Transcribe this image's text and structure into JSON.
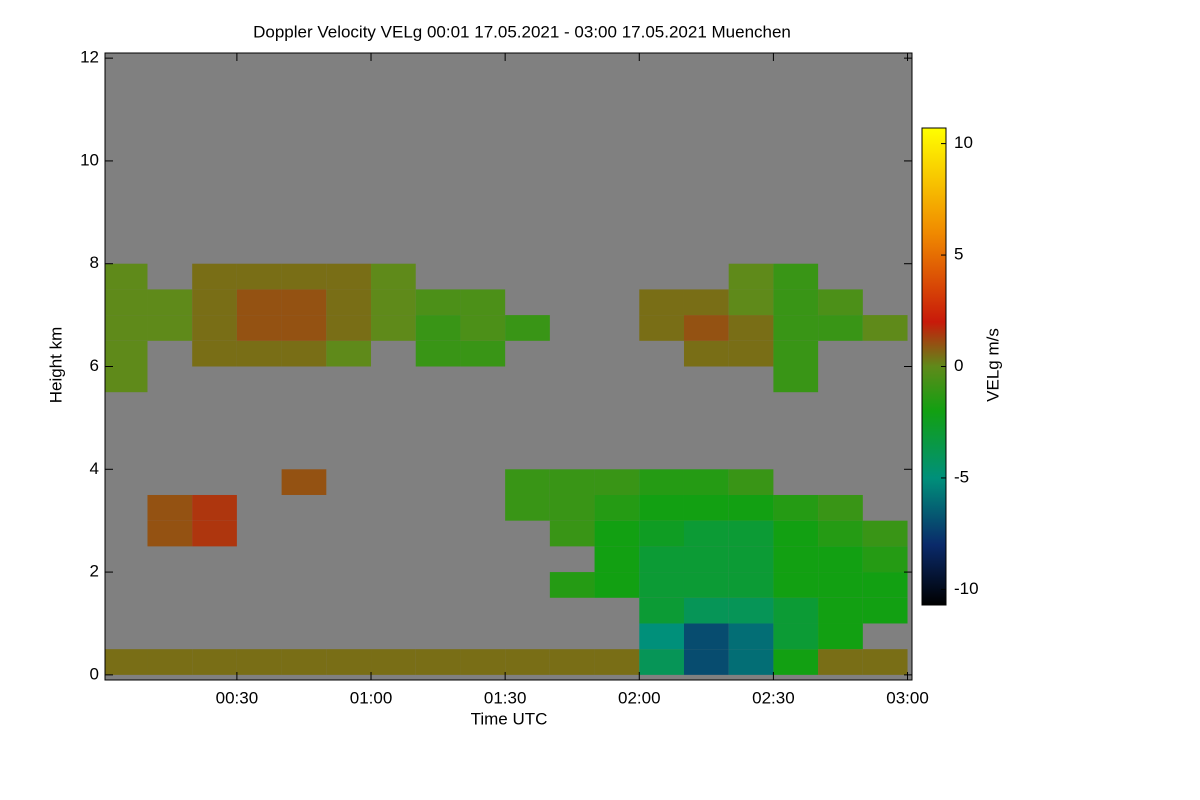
{
  "chart_data": {
    "type": "heatmap",
    "title": "Doppler Velocity VELg   00:01 17.05.2021 - 03:00 17.05.2021 Muenchen",
    "xlabel": "Time UTC",
    "ylabel": "Height km",
    "colorbar_label": "VELg m/s",
    "xlim": [
      0.5,
      181
    ],
    "ylim": [
      -0.1,
      12.1
    ],
    "xticks": [
      {
        "value": 30,
        "label": "00:30"
      },
      {
        "value": 60,
        "label": "01:00"
      },
      {
        "value": 90,
        "label": "01:30"
      },
      {
        "value": 120,
        "label": "02:00"
      },
      {
        "value": 150,
        "label": "02:30"
      },
      {
        "value": 180,
        "label": "03:00"
      }
    ],
    "yticks": [
      0,
      2,
      4,
      6,
      8,
      10,
      12
    ],
    "zlim": [
      -10.7,
      10.7
    ],
    "zticks": [
      -10,
      -5,
      0,
      5,
      10
    ],
    "background": "#808080",
    "colorscale": [
      {
        "value": -10.7,
        "color": "#000000"
      },
      {
        "value": -8,
        "color": "#0a2a6a"
      },
      {
        "value": -5,
        "color": "#00907a"
      },
      {
        "value": -2,
        "color": "#12a012"
      },
      {
        "value": 0,
        "color": "#5f8a1a"
      },
      {
        "value": 2,
        "color": "#c81a0a"
      },
      {
        "value": 6,
        "color": "#f08a00"
      },
      {
        "value": 10.7,
        "color": "#ffff00"
      }
    ],
    "x_bins": [
      0,
      10,
      20,
      30,
      40,
      50,
      60,
      70,
      80,
      90,
      100,
      110,
      120,
      130,
      140,
      150,
      160,
      170,
      180
    ],
    "y_bins": [
      0,
      0.5,
      1,
      1.5,
      2,
      2.5,
      3,
      3.5,
      4,
      4.5,
      5,
      5.5,
      6,
      6.5,
      7,
      7.5,
      8,
      8.5,
      9,
      9.5,
      10,
      10.5,
      11,
      11.5,
      12
    ],
    "z": [
      [
        0.5,
        0.5,
        0.5,
        0.5,
        0.5,
        0.5,
        0.5,
        0.5,
        0.5,
        0.5,
        0.5,
        0.5,
        -4,
        -7,
        -6,
        -2,
        0.5,
        0.5
      ],
      [
        null,
        null,
        null,
        null,
        null,
        null,
        null,
        null,
        null,
        null,
        null,
        null,
        -5,
        -7,
        -6,
        -3,
        -2,
        null
      ],
      [
        null,
        null,
        null,
        null,
        null,
        null,
        null,
        null,
        null,
        null,
        null,
        null,
        -3,
        -4,
        -4,
        -3,
        -2,
        -2
      ],
      [
        null,
        null,
        null,
        null,
        null,
        null,
        null,
        null,
        null,
        null,
        -1.5,
        -2,
        -3,
        -3,
        -3,
        -2,
        -2,
        -2
      ],
      [
        null,
        null,
        null,
        null,
        null,
        null,
        null,
        null,
        null,
        null,
        null,
        -2,
        -3,
        -3,
        -3,
        -2,
        -2,
        -1.5
      ],
      [
        null,
        1,
        1.5,
        null,
        null,
        null,
        null,
        null,
        null,
        null,
        -1,
        -2,
        -2.5,
        -3,
        -3,
        -2,
        -1.5,
        -1
      ],
      [
        null,
        1,
        1.5,
        null,
        null,
        null,
        null,
        null,
        null,
        -1,
        -1,
        -1.5,
        -2,
        -2,
        -2,
        -1.5,
        -1,
        null
      ],
      [
        null,
        null,
        null,
        null,
        1,
        null,
        null,
        null,
        null,
        -1,
        -1,
        -1,
        -1.5,
        -1.5,
        -1,
        null,
        null,
        null
      ],
      [
        null,
        null,
        null,
        null,
        null,
        null,
        null,
        null,
        null,
        null,
        null,
        null,
        null,
        null,
        null,
        null,
        null,
        null
      ],
      [
        null,
        null,
        null,
        null,
        null,
        null,
        null,
        null,
        null,
        null,
        null,
        null,
        null,
        null,
        null,
        null,
        null,
        null
      ],
      [
        null,
        null,
        null,
        null,
        null,
        null,
        null,
        null,
        null,
        null,
        null,
        null,
        null,
        null,
        null,
        null,
        null,
        null
      ],
      [
        0,
        null,
        null,
        null,
        null,
        null,
        null,
        null,
        null,
        null,
        null,
        null,
        null,
        null,
        null,
        -1,
        null,
        null
      ],
      [
        0,
        null,
        0.5,
        0.5,
        0.5,
        0,
        null,
        -1,
        -1,
        null,
        null,
        null,
        null,
        0.5,
        0.5,
        -1,
        null,
        null
      ],
      [
        0,
        0,
        0.5,
        1,
        1,
        0.5,
        0,
        -1,
        -0.5,
        -1,
        null,
        null,
        0.5,
        1,
        0.5,
        -1,
        -1,
        0
      ],
      [
        0,
        0,
        0.5,
        1,
        1,
        0.5,
        0,
        -0.5,
        -0.5,
        null,
        null,
        null,
        0.5,
        0.5,
        0,
        -1,
        -0.5,
        null
      ],
      [
        0,
        null,
        0.5,
        0.5,
        0.5,
        0.5,
        0,
        null,
        null,
        null,
        null,
        null,
        null,
        null,
        0,
        -1,
        null,
        null
      ],
      [
        null,
        null,
        null,
        null,
        null,
        null,
        null,
        null,
        null,
        null,
        null,
        null,
        null,
        null,
        null,
        null,
        null,
        null
      ],
      [
        null,
        null,
        null,
        null,
        null,
        null,
        null,
        null,
        null,
        null,
        null,
        null,
        null,
        null,
        null,
        null,
        null,
        null
      ],
      [
        null,
        null,
        null,
        null,
        null,
        null,
        null,
        null,
        null,
        null,
        null,
        null,
        null,
        null,
        null,
        null,
        null,
        null
      ],
      [
        null,
        null,
        null,
        null,
        null,
        null,
        null,
        null,
        null,
        null,
        null,
        null,
        null,
        null,
        null,
        null,
        null,
        null
      ],
      [
        null,
        null,
        null,
        null,
        null,
        null,
        null,
        null,
        null,
        null,
        null,
        null,
        null,
        null,
        null,
        null,
        null,
        null
      ],
      [
        null,
        null,
        null,
        null,
        null,
        null,
        null,
        null,
        null,
        null,
        null,
        null,
        null,
        null,
        null,
        null,
        null,
        null
      ],
      [
        null,
        null,
        null,
        null,
        null,
        null,
        null,
        null,
        null,
        null,
        null,
        null,
        null,
        null,
        null,
        null,
        null,
        null
      ],
      [
        null,
        null,
        null,
        null,
        null,
        null,
        null,
        null,
        null,
        null,
        null,
        null,
        null,
        null,
        null,
        null,
        null,
        null
      ]
    ]
  }
}
